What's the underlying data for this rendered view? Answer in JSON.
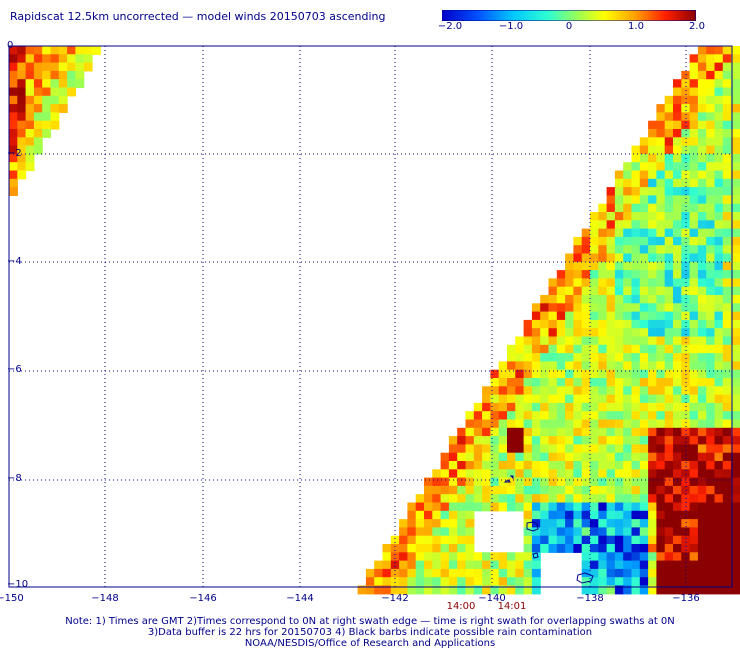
{
  "title": "Rapidscat 12.5km uncorrected — model winds 20150703 ascending",
  "colorbar": {
    "labels": [
      "−2.0",
      "−1.0",
      "0",
      "1.0",
      "2.0"
    ],
    "colors": [
      "#0000c8",
      "#00a0ff",
      "#30ffd0",
      "#a0ff50",
      "#ffff00",
      "#ffa000",
      "#ff2000",
      "#8b0000"
    ]
  },
  "axes": {
    "x_ticks": [
      "−150",
      "−148",
      "−146",
      "−144",
      "−142",
      "−140",
      "−138",
      "−136"
    ],
    "y_ticks": [
      "0",
      "−2",
      "−4",
      "−6",
      "−8",
      "−10"
    ],
    "lon_range": [
      -150,
      -134.6
    ],
    "lat_range": [
      -10,
      0
    ]
  },
  "swath_times": [
    "14:00",
    "14:01"
  ],
  "notes": [
    "Note: 1) Times are GMT 2)Times correspond to 0N at right swath edge — time is right swath for overlapping swaths at 0N",
    "3)Data buffer is 22 hrs for 20150703 4) Black barbs indicate possible rain contamination",
    "NOAA/NESDIS/Office of Research and Applications"
  ]
}
